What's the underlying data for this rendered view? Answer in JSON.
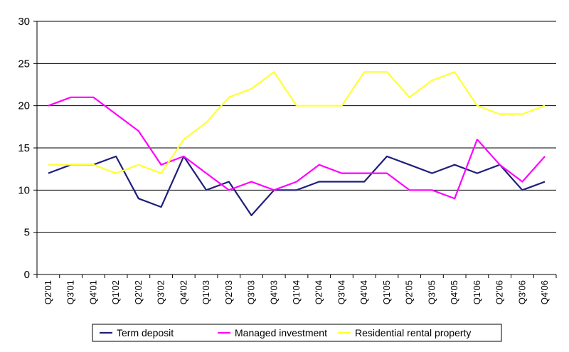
{
  "chart_data": {
    "type": "line",
    "title": "",
    "xlabel": "",
    "ylabel": "",
    "categories": [
      "Q2'01",
      "Q3'01",
      "Q4'01",
      "Q1'02",
      "Q2'02",
      "Q3'02",
      "Q4'02",
      "Q1'03",
      "Q2'03",
      "Q3'03",
      "Q4'03",
      "Q1'04",
      "Q2'04",
      "Q3'04",
      "Q4'04",
      "Q1'05",
      "Q2'05",
      "Q3'05",
      "Q4'05",
      "Q1'06",
      "Q2'06",
      "Q3'06",
      "Q4'06"
    ],
    "ylim": [
      0,
      30
    ],
    "yticks": [
      "0",
      "5",
      "10",
      "15",
      "20",
      "25",
      "30"
    ],
    "grid": "horizontal",
    "legend_position": "bottom",
    "series": [
      {
        "name": "Term deposit",
        "color": "#1f1f7a",
        "values": [
          12,
          13,
          13,
          14,
          9,
          8,
          14,
          10,
          11,
          7,
          10,
          10,
          11,
          11,
          11,
          14,
          13,
          12,
          13,
          12,
          13,
          10,
          11
        ]
      },
      {
        "name": "Managed investment",
        "color": "#ff00ff",
        "values": [
          20,
          21,
          21,
          19,
          17,
          13,
          14,
          12,
          10,
          11,
          10,
          11,
          13,
          12,
          12,
          12,
          10,
          10,
          9,
          16,
          13,
          11,
          14
        ]
      },
      {
        "name": "Residential rental property",
        "color": "#ffff33",
        "values": [
          13,
          13,
          13,
          12,
          13,
          12,
          16,
          18,
          21,
          22,
          24,
          20,
          20,
          20,
          24,
          24,
          21,
          23,
          24,
          20,
          19,
          19,
          20
        ]
      }
    ]
  }
}
